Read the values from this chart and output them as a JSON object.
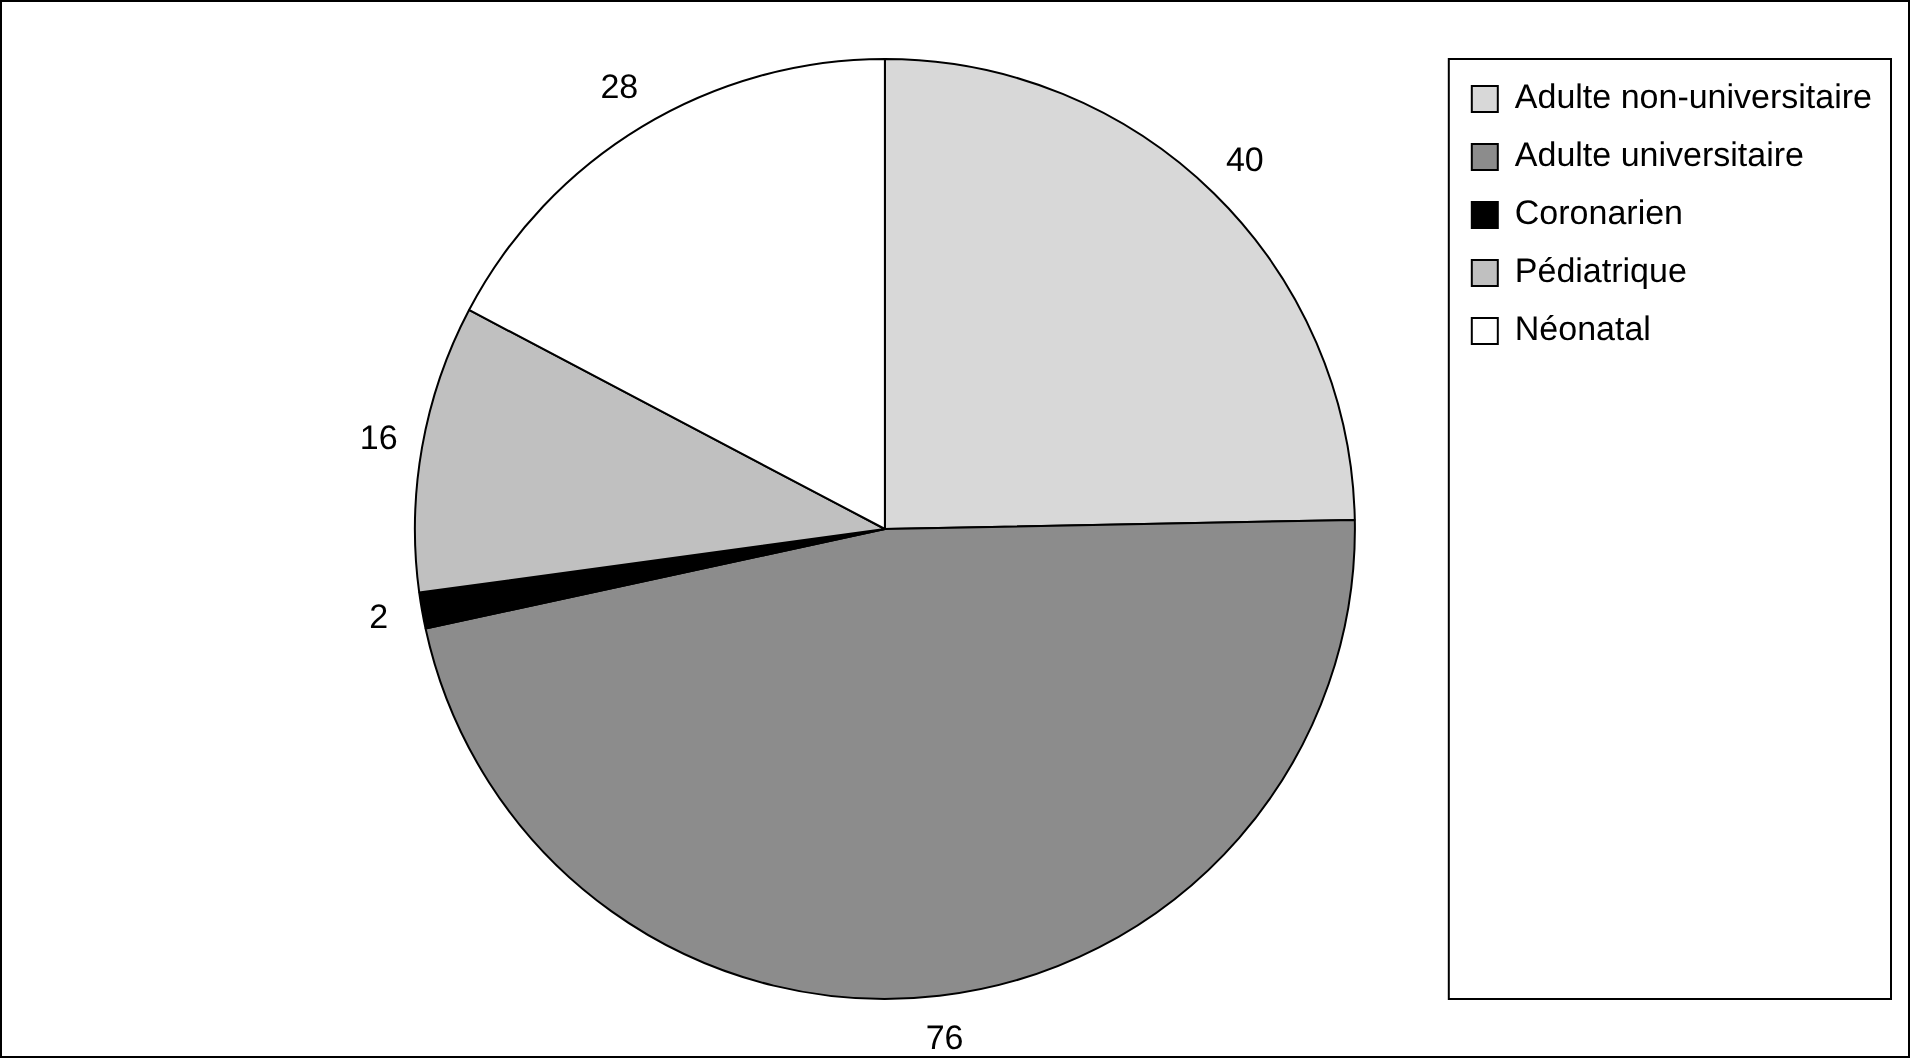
{
  "chart_data": {
    "type": "pie",
    "categories": [
      "Adulte non-universitaire",
      "Adulte universitaire",
      "Coronarien",
      "Pédiatrique",
      "Néonatal"
    ],
    "values": [
      40,
      76,
      2,
      16,
      28
    ],
    "colors": [
      "#d8d8d8",
      "#8c8c8c",
      "#000000",
      "#c0c0c0",
      "#ffffff"
    ],
    "data_labels": true,
    "legend": "top right"
  }
}
